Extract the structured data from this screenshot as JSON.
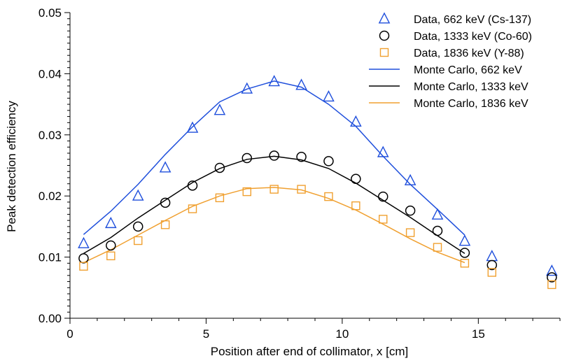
{
  "chart_data": {
    "type": "scatter",
    "title": "",
    "xlabel": "Position after end of collimator, x [cm]",
    "ylabel": "Peak detection efficiency",
    "xlim": [
      0,
      18
    ],
    "ylim": [
      0,
      0.05
    ],
    "grid": false,
    "legend_position": "top-right",
    "x_ticks": [
      0,
      5,
      10,
      15
    ],
    "x_tick_labels": [
      "0",
      "5",
      "10",
      "15"
    ],
    "y_ticks": [
      0,
      0.01,
      0.02,
      0.03,
      0.04,
      0.05
    ],
    "y_tick_labels": [
      "0.00",
      "0.01",
      "0.02",
      "0.03",
      "0.04",
      "0.05"
    ],
    "series": [
      {
        "name": "Data, 662 keV (Cs-137)",
        "kind": "scatter",
        "marker": "triangle",
        "color": "#1f4fdc",
        "x": [
          0.5,
          1.5,
          2.5,
          3.5,
          4.5,
          5.5,
          6.5,
          7.5,
          8.5,
          9.5,
          10.5,
          11.5,
          12.5,
          13.5,
          14.5,
          15.5,
          17.7
        ],
        "y": [
          0.0122,
          0.0155,
          0.02,
          0.0246,
          0.0311,
          0.034,
          0.0375,
          0.0387,
          0.0381,
          0.0362,
          0.0321,
          0.0271,
          0.0225,
          0.0169,
          0.0126,
          0.0101,
          0.0077
        ]
      },
      {
        "name": "Data, 1333 keV (Co-60)",
        "kind": "scatter",
        "marker": "circle",
        "color": "#000000",
        "x": [
          0.5,
          1.5,
          2.5,
          3.5,
          4.5,
          5.5,
          6.5,
          7.5,
          8.5,
          9.5,
          10.5,
          11.5,
          12.5,
          13.5,
          14.5,
          15.5,
          17.7
        ],
        "y": [
          0.0098,
          0.0119,
          0.015,
          0.0189,
          0.0217,
          0.0246,
          0.0262,
          0.0266,
          0.0264,
          0.0257,
          0.0228,
          0.0199,
          0.0176,
          0.0143,
          0.0107,
          0.0087,
          0.0067
        ]
      },
      {
        "name": "Data, 1836 keV (Y-88)",
        "kind": "scatter",
        "marker": "square",
        "color": "#f0a030",
        "x": [
          0.5,
          1.5,
          2.5,
          3.5,
          4.5,
          5.5,
          6.5,
          7.5,
          8.5,
          9.5,
          10.5,
          11.5,
          12.5,
          13.5,
          14.5,
          15.5,
          17.7
        ],
        "y": [
          0.0085,
          0.0102,
          0.0127,
          0.0153,
          0.0179,
          0.0197,
          0.0207,
          0.0211,
          0.0211,
          0.0199,
          0.0184,
          0.0162,
          0.014,
          0.0116,
          0.009,
          0.0075,
          0.0055
        ]
      },
      {
        "name": "Monte Carlo, 662 keV",
        "kind": "line",
        "color": "#1f4fdc",
        "x": [
          0.5,
          1.5,
          2.5,
          3.5,
          4.5,
          5.5,
          6.5,
          7.5,
          8.5,
          9.5,
          10.5,
          11.5,
          12.5,
          13.5,
          14.5
        ],
        "y": [
          0.0137,
          0.0175,
          0.0219,
          0.0268,
          0.0313,
          0.0354,
          0.0375,
          0.0388,
          0.0378,
          0.035,
          0.0314,
          0.0265,
          0.0219,
          0.0178,
          0.0136
        ]
      },
      {
        "name": "Monte Carlo, 1333 keV",
        "kind": "line",
        "color": "#000000",
        "x": [
          0.5,
          1.5,
          2.5,
          3.5,
          4.5,
          5.5,
          6.5,
          7.5,
          8.5,
          9.5,
          10.5,
          11.5,
          12.5,
          13.5,
          14.5
        ],
        "y": [
          0.0106,
          0.0132,
          0.0164,
          0.0193,
          0.0222,
          0.0245,
          0.026,
          0.0265,
          0.0259,
          0.0245,
          0.0221,
          0.0193,
          0.0165,
          0.0135,
          0.0106
        ]
      },
      {
        "name": "Monte Carlo, 1836 keV",
        "kind": "line",
        "color": "#f0a030",
        "x": [
          0.5,
          1.5,
          2.5,
          3.5,
          4.5,
          5.5,
          6.5,
          7.5,
          8.5,
          9.5,
          10.5,
          11.5,
          12.5,
          13.5,
          14.5
        ],
        "y": [
          0.0091,
          0.0112,
          0.0136,
          0.016,
          0.0183,
          0.02,
          0.0212,
          0.0214,
          0.021,
          0.0196,
          0.0177,
          0.0154,
          0.013,
          0.0108,
          0.0091
        ]
      }
    ]
  }
}
